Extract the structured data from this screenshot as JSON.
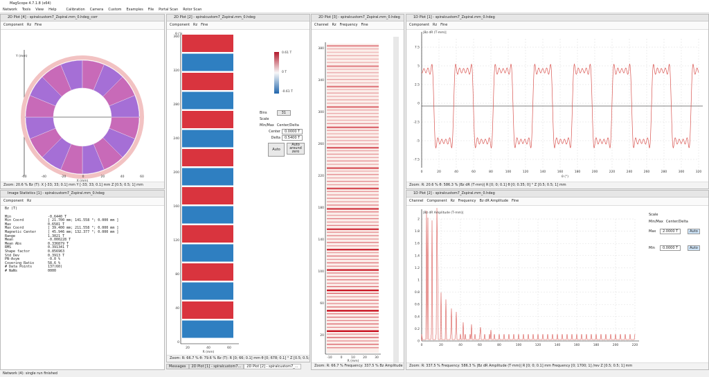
{
  "window": {
    "title": "MagScope 4.7.1.8 (x64)"
  },
  "menu": [
    "Network",
    "Tools",
    "View",
    "Help",
    "Calibration",
    "Camera",
    "Custom",
    "Examples",
    "File",
    "Portal Scan",
    "Rotor Scan"
  ],
  "panels": [
    {
      "title": "2D Plot [4] - spiralcustom7_Zspiral.mm_0.hdeg_corr",
      "toolbar": [
        "Component",
        "Rz",
        "Fine"
      ],
      "status": "Zoom: 20.6 %     Bz (T): X [-33; 33; 0.1] mm Y [-33; 33; 0.1] mm Z [0.5; 0.5; 1] mm",
      "xticks": [
        -60,
        -40,
        -20,
        0,
        20,
        40,
        60
      ],
      "xlabel": "X (mm)",
      "ylabel": "Y (mm)"
    },
    {
      "title": "Image Statistics [1] - spiralcustom7_Zspiral.mm_0.hdeg",
      "toolbar": [
        "Component",
        "Rz"
      ],
      "unit": "Bz (T)",
      "rows": [
        [
          "Min",
          "-0.6440 T"
        ],
        [
          "Min Coord",
          "[ 21.700 mm; 141.558 °; 0.000 mm ]"
        ],
        [
          "Max",
          "0.6581 T"
        ],
        [
          "Max Coord",
          "[ 39.400 mm; 211.558 °; 0.000 mm ]"
        ],
        [
          "Magnetic Center",
          "[ 45.946 mm; 132.377 °; 0.000 mm ]"
        ],
        [
          "Range",
          "1.3021 T"
        ],
        [
          "Mean",
          "-0.000228 T"
        ],
        [
          "Mean Abs",
          "0.336879 T"
        ],
        [
          "RMS",
          "0.391341 T"
        ],
        [
          "Shape factor",
          "0.856963"
        ],
        [
          "Std Dev",
          "0.3913 T"
        ],
        [
          "PN-Asym",
          "-0.0 %"
        ],
        [
          "Covering Ratio",
          "58.6 %"
        ],
        [
          "# Data Points",
          "137(60)"
        ],
        [
          "# NaNs",
          "0000"
        ]
      ]
    },
    {
      "title": "2D Plot [2] - spiralcustom7_Zspiral.mm_0.hdeg",
      "toolbar": [
        "Component",
        "Rz",
        "Fine"
      ],
      "status": "Zoom: R: 66.7 % θ: 79.6 %     Bz (T): R [0; 66; 0.1] mm θ [0; 678; 0.1] ° Z [0.5; 0.5; 1] mm",
      "yticks": [
        360,
        320,
        280,
        240,
        200,
        160,
        120,
        80,
        40,
        0
      ],
      "xticks": [
        20,
        40,
        60
      ],
      "xlabel": "R (mm)",
      "ylabel": "θ (°)",
      "colorbar": [
        "0.61 T",
        "0 T",
        "-0.61 T"
      ],
      "bins_label": "Bins",
      "bins": "31",
      "scale": "Scale",
      "modes": [
        "Min/Max",
        "Center/Delta"
      ],
      "center_label": "Center",
      "center": "0.0000 T",
      "delta_label": "Delta",
      "delta": "0.5400 T",
      "auto": "Auto",
      "auto_zero": "Auto around zero",
      "tabs": [
        "Messages",
        "2D Plot [1] - spiralcustom7...",
        "2D Plot [2] - spiralcustom7_..."
      ]
    },
    {
      "title": "2D Plot [3] - spiralcustom7_Zspiral.mm_0.hdeg",
      "toolbar": [
        "Channel",
        "Rz",
        "Frequency",
        "Fine"
      ],
      "status": "Zoom: R: 66.7 % Frequency: 337.5 %     Bz Amplitude (T): R [0; 66]",
      "yticks": [
        380,
        340,
        300,
        260,
        220,
        180,
        140,
        100,
        60,
        20
      ],
      "xticks": [
        -10,
        0,
        10,
        20,
        30
      ],
      "xlabel": "R (mm)"
    },
    {
      "title": "1D Plot [1] - spiralcustom7_Zspiral.mm_0.hdeg",
      "toolbar": [
        "Component",
        "Rz",
        "Fine"
      ],
      "status": "Zoom: R: 20.6 % θ: 586.3 %     |Bz dR (T·mm)| R [0; 0; 0.1] θ [0; 0.35; 0] ° Z [0.5; 0.5; 1] mm",
      "yticks": [
        7.5,
        5,
        2.5,
        0,
        -2.5,
        -5,
        -7.5
      ],
      "xticks": [
        0,
        20,
        40,
        60,
        80,
        100,
        120,
        140,
        160,
        180,
        200,
        220,
        240,
        260,
        280,
        300,
        320
      ],
      "xlabel": "θ (°)",
      "ylabel": "|Bz dR (T·mm)|"
    },
    {
      "title": "1D Plot [2] - spiralcustom7_Zspiral.mm_0.hdeg",
      "toolbar": [
        "Channel",
        "Component",
        "Rz",
        "Frequency",
        "Bz dR Amplitude",
        "Fine"
      ],
      "status": "Zoom: R: 337.5 % Frequency: 586.3 %     |Bz dR Amplitude (T·mm)| R [0; 0; 0.1] mm Frequency [0; 1700; 1] /rev Z [0.5; 0.5; 1] mm",
      "yticks": [
        2,
        1.8,
        1.6,
        1.4,
        1.2,
        1,
        0.8,
        0.6,
        0.4,
        0.2,
        0
      ],
      "xticks": [
        0,
        20,
        40,
        60,
        80,
        100,
        120,
        140,
        160,
        180,
        200,
        220
      ],
      "ylabel": "|Bz dR Amplitude (T·mm)|",
      "scale": "Scale",
      "modes": [
        "Min/Max",
        "Center/Delta"
      ],
      "max_label": "Max",
      "max": "2.0000 T",
      "min_label": "Min",
      "min": "0.0000 T",
      "auto": "Auto"
    }
  ],
  "statusbar": "Network (4): single run finished"
}
